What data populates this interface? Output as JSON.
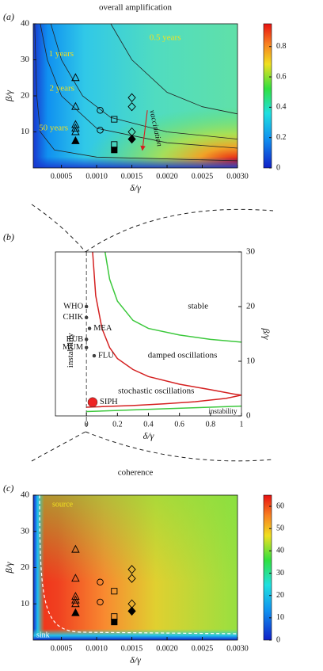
{
  "chart_data": [
    {
      "type": "heatmap",
      "panel_label": "(a)",
      "title": "overall amplification",
      "xlabel": "δ/γ",
      "ylabel": "β/γ",
      "xlim": [
        0.0001,
        0.003
      ],
      "ylim": [
        0,
        40
      ],
      "xticks": [
        0.0005,
        {
          "value": 0.001,
          "label": "0.0010"
        },
        0.0015,
        {
          "value": 0.002,
          "label": "0.0020"
        },
        0.0025,
        {
          "value": 0.003,
          "label": "0.0030"
        }
      ],
      "yticks": [
        10,
        20,
        30,
        40
      ],
      "colorbar": {
        "lim": [
          0,
          0.95
        ],
        "ticks": [
          0,
          0.2,
          0.4,
          0.6,
          0.8
        ]
      },
      "contours": [
        {
          "label": "0.5 years",
          "color": "#222222",
          "x": [
            0.0012,
            0.0015,
            0.002,
            0.0025,
            0.003
          ],
          "y": [
            40,
            30,
            21,
            17,
            15
          ]
        },
        {
          "label": "1 years",
          "color": "#222222",
          "x": [
            0.00035,
            0.0005,
            0.0008,
            0.0012,
            0.002,
            0.003
          ],
          "y": [
            40,
            30,
            20,
            14,
            10,
            8
          ]
        },
        {
          "label": "2 years",
          "color": "#222222",
          "x": [
            0.0002,
            0.0003,
            0.0005,
            0.001,
            0.002,
            0.003
          ],
          "y": [
            40,
            30,
            20,
            11,
            7,
            5.5
          ]
        },
        {
          "label": "50 years",
          "color": "#222222",
          "x": [
            0.00012,
            0.00015,
            0.0002,
            0.0004,
            0.001,
            0.003
          ],
          "y": [
            40,
            20,
            10,
            5,
            3,
            2
          ]
        }
      ],
      "contour_label_color": "#f0e020",
      "annotation": "vaccination",
      "annotation_color": "#d42020",
      "markers": [
        {
          "shape": "triangle",
          "x": [
            0.0007,
            0.0007,
            0.0007,
            0.0007,
            0.0007,
            0.0007
          ],
          "y": [
            25,
            17,
            12,
            11,
            10,
            7.5
          ],
          "filled": [
            false,
            false,
            false,
            false,
            false,
            true
          ]
        },
        {
          "shape": "circle",
          "x": [
            0.00105,
            0.00105
          ],
          "y": [
            16,
            10.5
          ],
          "filled": [
            false,
            false
          ]
        },
        {
          "shape": "square",
          "x": [
            0.00125,
            0.00125,
            0.00125
          ],
          "y": [
            13.5,
            6.5,
            5
          ],
          "filled": [
            false,
            false,
            true
          ]
        },
        {
          "shape": "diamond",
          "x": [
            0.0015,
            0.0015,
            0.0015,
            0.0015
          ],
          "y": [
            19.5,
            17,
            10,
            8
          ],
          "filled": [
            false,
            false,
            false,
            true
          ]
        }
      ]
    },
    {
      "type": "line",
      "panel_label": "(b)",
      "xlabel": "δ/γ",
      "ylabel": "β/γ",
      "xlim": [
        -0.2,
        1
      ],
      "ylim": [
        0,
        30
      ],
      "xticks": [
        0,
        0.2,
        0.4,
        0.6,
        0.8,
        1
      ],
      "yticks": [
        0,
        10,
        20,
        30
      ],
      "yaxis_side": "right",
      "series": [
        {
          "color": "#3cc83c",
          "x": [
            0.12,
            0.15,
            0.2,
            0.3,
            0.4,
            0.6,
            0.8,
            1
          ],
          "y": [
            30,
            25,
            21,
            17.5,
            16,
            14.8,
            14,
            13.5
          ]
        },
        {
          "color": "#d42020",
          "x": [
            0.04,
            0.06,
            0.1,
            0.15,
            0.2,
            0.3,
            0.4,
            0.6,
            0.8,
            0.95,
            1
          ],
          "y": [
            30,
            22,
            16,
            12.5,
            10.5,
            8.5,
            7.2,
            5.8,
            4.8,
            4,
            3.8
          ]
        },
        {
          "color": "#d42020",
          "x": [
            1,
            0.9,
            0.7,
            0.5,
            0.3,
            0.1,
            0
          ],
          "y": [
            3.8,
            3.2,
            2.6,
            2.2,
            1.9,
            1.7,
            1.6
          ]
        },
        {
          "color": "#3cc83c",
          "x": [
            0,
            0.2,
            0.5,
            0.8,
            1
          ],
          "y": [
            0.8,
            1.0,
            1.3,
            1.6,
            1.8
          ]
        }
      ],
      "points": {
        "labels": [
          "WHO",
          "CHIK",
          "MEA",
          "RUB",
          "MUM",
          "FLU",
          "SIPH"
        ],
        "x": [
          0,
          0,
          0.02,
          0,
          0,
          0.05,
          0.04
        ],
        "y": [
          20,
          18,
          16,
          14,
          12.5,
          11,
          2.5
        ],
        "colors": [
          "#444444",
          "#444444",
          "#444444",
          "#444444",
          "#444444",
          "#444444",
          "#ee2222"
        ],
        "marker_sizes": [
          2,
          2,
          2,
          2,
          2,
          2,
          6
        ]
      },
      "regions": [
        "stable",
        "damped oscillations",
        "stochastic oscillations",
        "instability",
        "instability"
      ]
    },
    {
      "type": "heatmap",
      "panel_label": "(c)",
      "title": "coherence",
      "xlabel": "δ/γ",
      "ylabel": "β/γ",
      "xlim": [
        0.0001,
        0.003
      ],
      "ylim": [
        0,
        40
      ],
      "xticks": [
        0.0005,
        {
          "value": 0.001,
          "label": "0.0010"
        },
        0.0015,
        {
          "value": 0.002,
          "label": "0.0020"
        },
        0.0025,
        {
          "value": 0.003,
          "label": "0.0030"
        }
      ],
      "yticks": [
        10,
        20,
        30,
        40
      ],
      "colorbar": {
        "lim": [
          0,
          65
        ],
        "ticks": [
          0,
          10,
          20,
          30,
          40,
          50,
          60
        ]
      },
      "annotations": [
        "source",
        "sink"
      ],
      "markers": [
        {
          "shape": "triangle",
          "x": [
            0.0007,
            0.0007,
            0.0007,
            0.0007,
            0.0007,
            0.0007
          ],
          "y": [
            25,
            17,
            12,
            11,
            10,
            7.5
          ],
          "filled": [
            false,
            false,
            false,
            false,
            false,
            true
          ]
        },
        {
          "shape": "circle",
          "x": [
            0.00105,
            0.00105
          ],
          "y": [
            16,
            10.5
          ],
          "filled": [
            false,
            false
          ]
        },
        {
          "shape": "square",
          "x": [
            0.00125,
            0.00125,
            0.00125
          ],
          "y": [
            13.5,
            6.5,
            5
          ],
          "filled": [
            false,
            false,
            true
          ]
        },
        {
          "shape": "diamond",
          "x": [
            0.0015,
            0.0015,
            0.0015,
            0.0015
          ],
          "y": [
            19.5,
            17,
            10,
            8
          ],
          "filled": [
            false,
            false,
            false,
            true
          ]
        }
      ]
    }
  ]
}
